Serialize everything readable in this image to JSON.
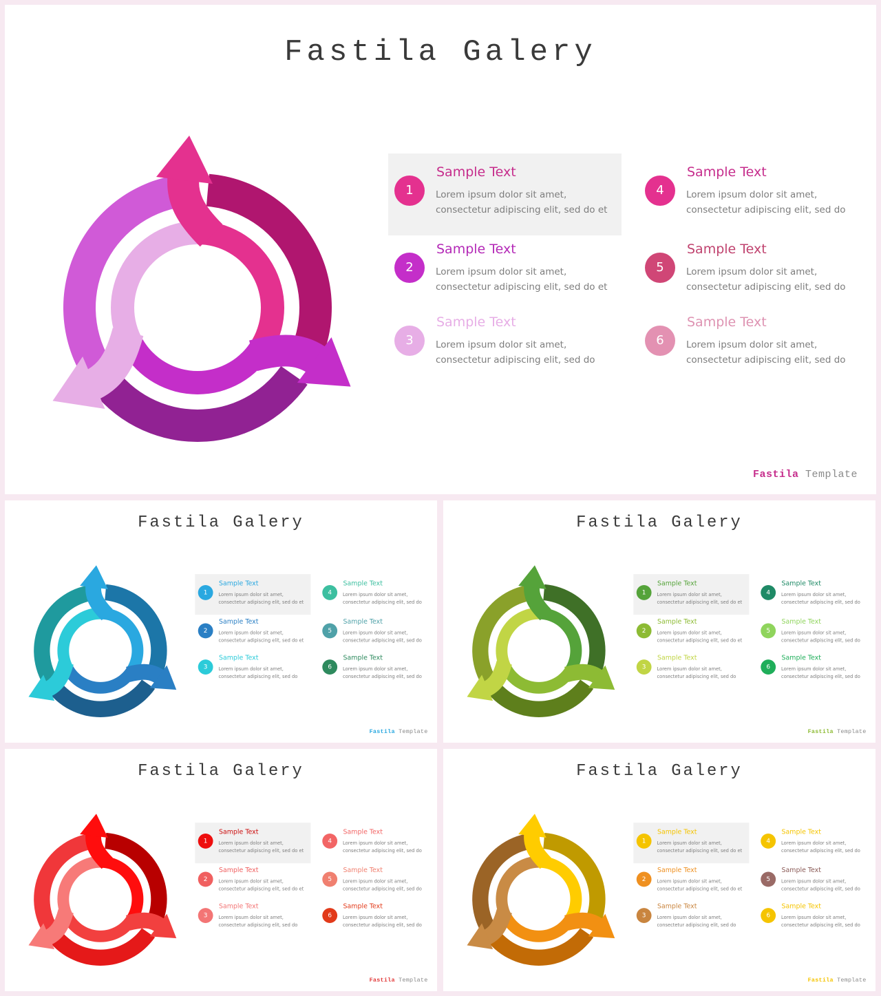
{
  "slides": [
    {
      "id": "main",
      "title": "Fastila Galery",
      "brand": {
        "name": "Fastila",
        "suffix": " Template"
      },
      "colors": {
        "ring_outer": [
          "#b0166f",
          "#912293",
          "#d05ad7"
        ],
        "ring_inner": [
          "#e4318f",
          "#c42ec9",
          "#e7aee6"
        ],
        "badges": [
          "#e4318f",
          "#c42ec9",
          "#e7aee6",
          "#e4318f",
          "#d04676",
          "#e391b2"
        ],
        "titles": [
          "#c62d8c",
          "#b42ab7",
          "#e7aee6",
          "#c62d8c",
          "#c0436f",
          "#de93b2"
        ],
        "brand": "#c62d8c"
      },
      "items": [
        {
          "num": "1",
          "title": "Sample Text",
          "desc": "Lorem ipsum dolor sit amet, consectetur adipiscing elit,  sed do et"
        },
        {
          "num": "2",
          "title": "Sample Text",
          "desc": "Lorem ipsum dolor sit amet, consectetur adipiscing elit,  sed do et"
        },
        {
          "num": "3",
          "title": "Sample Text",
          "desc": "Lorem ipsum dolor sit amet, consectetur adipiscing elit, sed do"
        },
        {
          "num": "4",
          "title": "Sample Text",
          "desc": "Lorem ipsum dolor sit amet, consectetur adipiscing elit, sed do"
        },
        {
          "num": "5",
          "title": "Sample Text",
          "desc": "Lorem ipsum dolor sit amet, consectetur adipiscing elit, sed do"
        },
        {
          "num": "6",
          "title": "Sample Text",
          "desc": "Lorem ipsum dolor sit amet, consectetur adipiscing elit, sed do"
        }
      ]
    },
    {
      "id": "teal",
      "title": "Fastila Galery",
      "brand": {
        "name": "Fastila",
        "suffix": " Template"
      },
      "colors": {
        "ring_outer": [
          "#1c76a8",
          "#1d5f8e",
          "#1f9a9e"
        ],
        "ring_inner": [
          "#2aa8e0",
          "#2a7fc4",
          "#2ccbd9"
        ],
        "badges": [
          "#2aa8e0",
          "#2a7fc4",
          "#2ccbd9",
          "#3dbfa0",
          "#4fa1a8",
          "#2e8a5e"
        ],
        "titles": [
          "#2aa8e0",
          "#2a7fc4",
          "#2ccbd9",
          "#3dbfa0",
          "#4fa1a8",
          "#2e8a5e"
        ],
        "brand": "#2aa8e0"
      },
      "items": [
        {
          "num": "1",
          "title": "Sample Text",
          "desc": "Lorem ipsum dolor sit amet, consectetur adipiscing elit,  sed do et"
        },
        {
          "num": "2",
          "title": "Sample Text",
          "desc": "Lorem ipsum dolor sit amet, consectetur adipiscing elit,  sed do et"
        },
        {
          "num": "3",
          "title": "Sample Text",
          "desc": "Lorem ipsum dolor sit amet, consectetur adipiscing elit, sed do"
        },
        {
          "num": "4",
          "title": "Sample Text",
          "desc": "Lorem ipsum dolor sit amet, consectetur adipiscing elit, sed do"
        },
        {
          "num": "5",
          "title": "Sample Text",
          "desc": "Lorem ipsum dolor sit amet, consectetur adipiscing elit, sed do"
        },
        {
          "num": "6",
          "title": "Sample Text",
          "desc": "Lorem ipsum dolor sit amet, consectetur adipiscing elit, sed do"
        }
      ]
    },
    {
      "id": "green",
      "title": "Fastila Galery",
      "brand": {
        "name": "Fastila",
        "suffix": " Template"
      },
      "colors": {
        "ring_outer": [
          "#3f7027",
          "#5e7f1c",
          "#8aa12a"
        ],
        "ring_inner": [
          "#55a33a",
          "#8dbb34",
          "#c1d545"
        ],
        "badges": [
          "#55a33a",
          "#8dbb34",
          "#c1d545",
          "#1f8a66",
          "#8fd45c",
          "#1fae5a"
        ],
        "titles": [
          "#55a33a",
          "#8dbb34",
          "#c1d545",
          "#1f8a66",
          "#8fd45c",
          "#1fae5a"
        ],
        "brand": "#8dbb34"
      },
      "items": [
        {
          "num": "1",
          "title": "Sample Text",
          "desc": "Lorem ipsum dolor sit amet, consectetur adipiscing elit,  sed do et"
        },
        {
          "num": "2",
          "title": "Sample Text",
          "desc": "Lorem ipsum dolor sit amet, consectetur adipiscing elit,  sed do et"
        },
        {
          "num": "3",
          "title": "Sample Text",
          "desc": "Lorem ipsum dolor sit amet, consectetur adipiscing elit, sed do"
        },
        {
          "num": "4",
          "title": "Sample Text",
          "desc": "Lorem ipsum dolor sit amet, consectetur adipiscing elit, sed do"
        },
        {
          "num": "5",
          "title": "Sample Text",
          "desc": "Lorem ipsum dolor sit amet, consectetur adipiscing elit, sed do"
        },
        {
          "num": "6",
          "title": "Sample Text",
          "desc": "Lorem ipsum dolor sit amet, consectetur adipiscing elit, sed do"
        }
      ]
    },
    {
      "id": "red",
      "title": "Fastila Galery",
      "brand": {
        "name": "Fastila",
        "suffix": " Template"
      },
      "colors": {
        "ring_outer": [
          "#b80000",
          "#e51919",
          "#f0373a"
        ],
        "ring_inner": [
          "#ff0d0d",
          "#f2403f",
          "#f77a78"
        ],
        "badges": [
          "#ee0e0e",
          "#f06060",
          "#f37575",
          "#f26565",
          "#f08070",
          "#e23a1a"
        ],
        "titles": [
          "#cc0d0d",
          "#f06060",
          "#f37575",
          "#f26565",
          "#f08070",
          "#e23a1a"
        ],
        "brand": "#e23a3a"
      },
      "items": [
        {
          "num": "1",
          "title": "Sample Text",
          "desc": "Lorem ipsum dolor sit amet, consectetur adipiscing elit,  sed do et"
        },
        {
          "num": "2",
          "title": "Sample Text",
          "desc": "Lorem ipsum dolor sit amet, consectetur adipiscing elit,  sed do et"
        },
        {
          "num": "3",
          "title": "Sample Text",
          "desc": "Lorem ipsum dolor sit amet, consectetur adipiscing elit, sed do"
        },
        {
          "num": "4",
          "title": "Sample Text",
          "desc": "Lorem ipsum dolor sit amet, consectetur adipiscing elit, sed do"
        },
        {
          "num": "5",
          "title": "Sample Text",
          "desc": "Lorem ipsum dolor sit amet, consectetur adipiscing elit, sed do"
        },
        {
          "num": "6",
          "title": "Sample Text",
          "desc": "Lorem ipsum dolor sit amet, consectetur adipiscing elit, sed do"
        }
      ]
    },
    {
      "id": "gold",
      "title": "Fastila Galery",
      "brand": {
        "name": "Fastila",
        "suffix": " Template"
      },
      "colors": {
        "ring_outer": [
          "#c09a00",
          "#c26b06",
          "#9b6426"
        ],
        "ring_inner": [
          "#ffcc00",
          "#f29012",
          "#c98b45"
        ],
        "badges": [
          "#f5c400",
          "#ef9020",
          "#c9853f",
          "#f5c400",
          "#9a6a66",
          "#f5c400"
        ],
        "titles": [
          "#f5c400",
          "#ef9020",
          "#c9853f",
          "#f5c400",
          "#8a5a56",
          "#f5c400"
        ],
        "brand": "#f5c400"
      },
      "items": [
        {
          "num": "1",
          "title": "Sample Text",
          "desc": "Lorem ipsum dolor sit amet, consectetur adipiscing elit,  sed do et"
        },
        {
          "num": "2",
          "title": "Sample Text",
          "desc": "Lorem ipsum dolor sit amet, consectetur adipiscing elit,  sed do et"
        },
        {
          "num": "3",
          "title": "Sample Text",
          "desc": "Lorem ipsum dolor sit amet, consectetur adipiscing elit, sed do"
        },
        {
          "num": "4",
          "title": "Sample Text",
          "desc": "Lorem ipsum dolor sit amet, consectetur adipiscing elit, sed do"
        },
        {
          "num": "5",
          "title": "Sample Text",
          "desc": "Lorem ipsum dolor sit amet, consectetur adipiscing elit, sed do"
        },
        {
          "num": "6",
          "title": "Sample Text",
          "desc": "Lorem ipsum dolor sit amet, consectetur adipiscing elit, sed do"
        }
      ]
    }
  ]
}
